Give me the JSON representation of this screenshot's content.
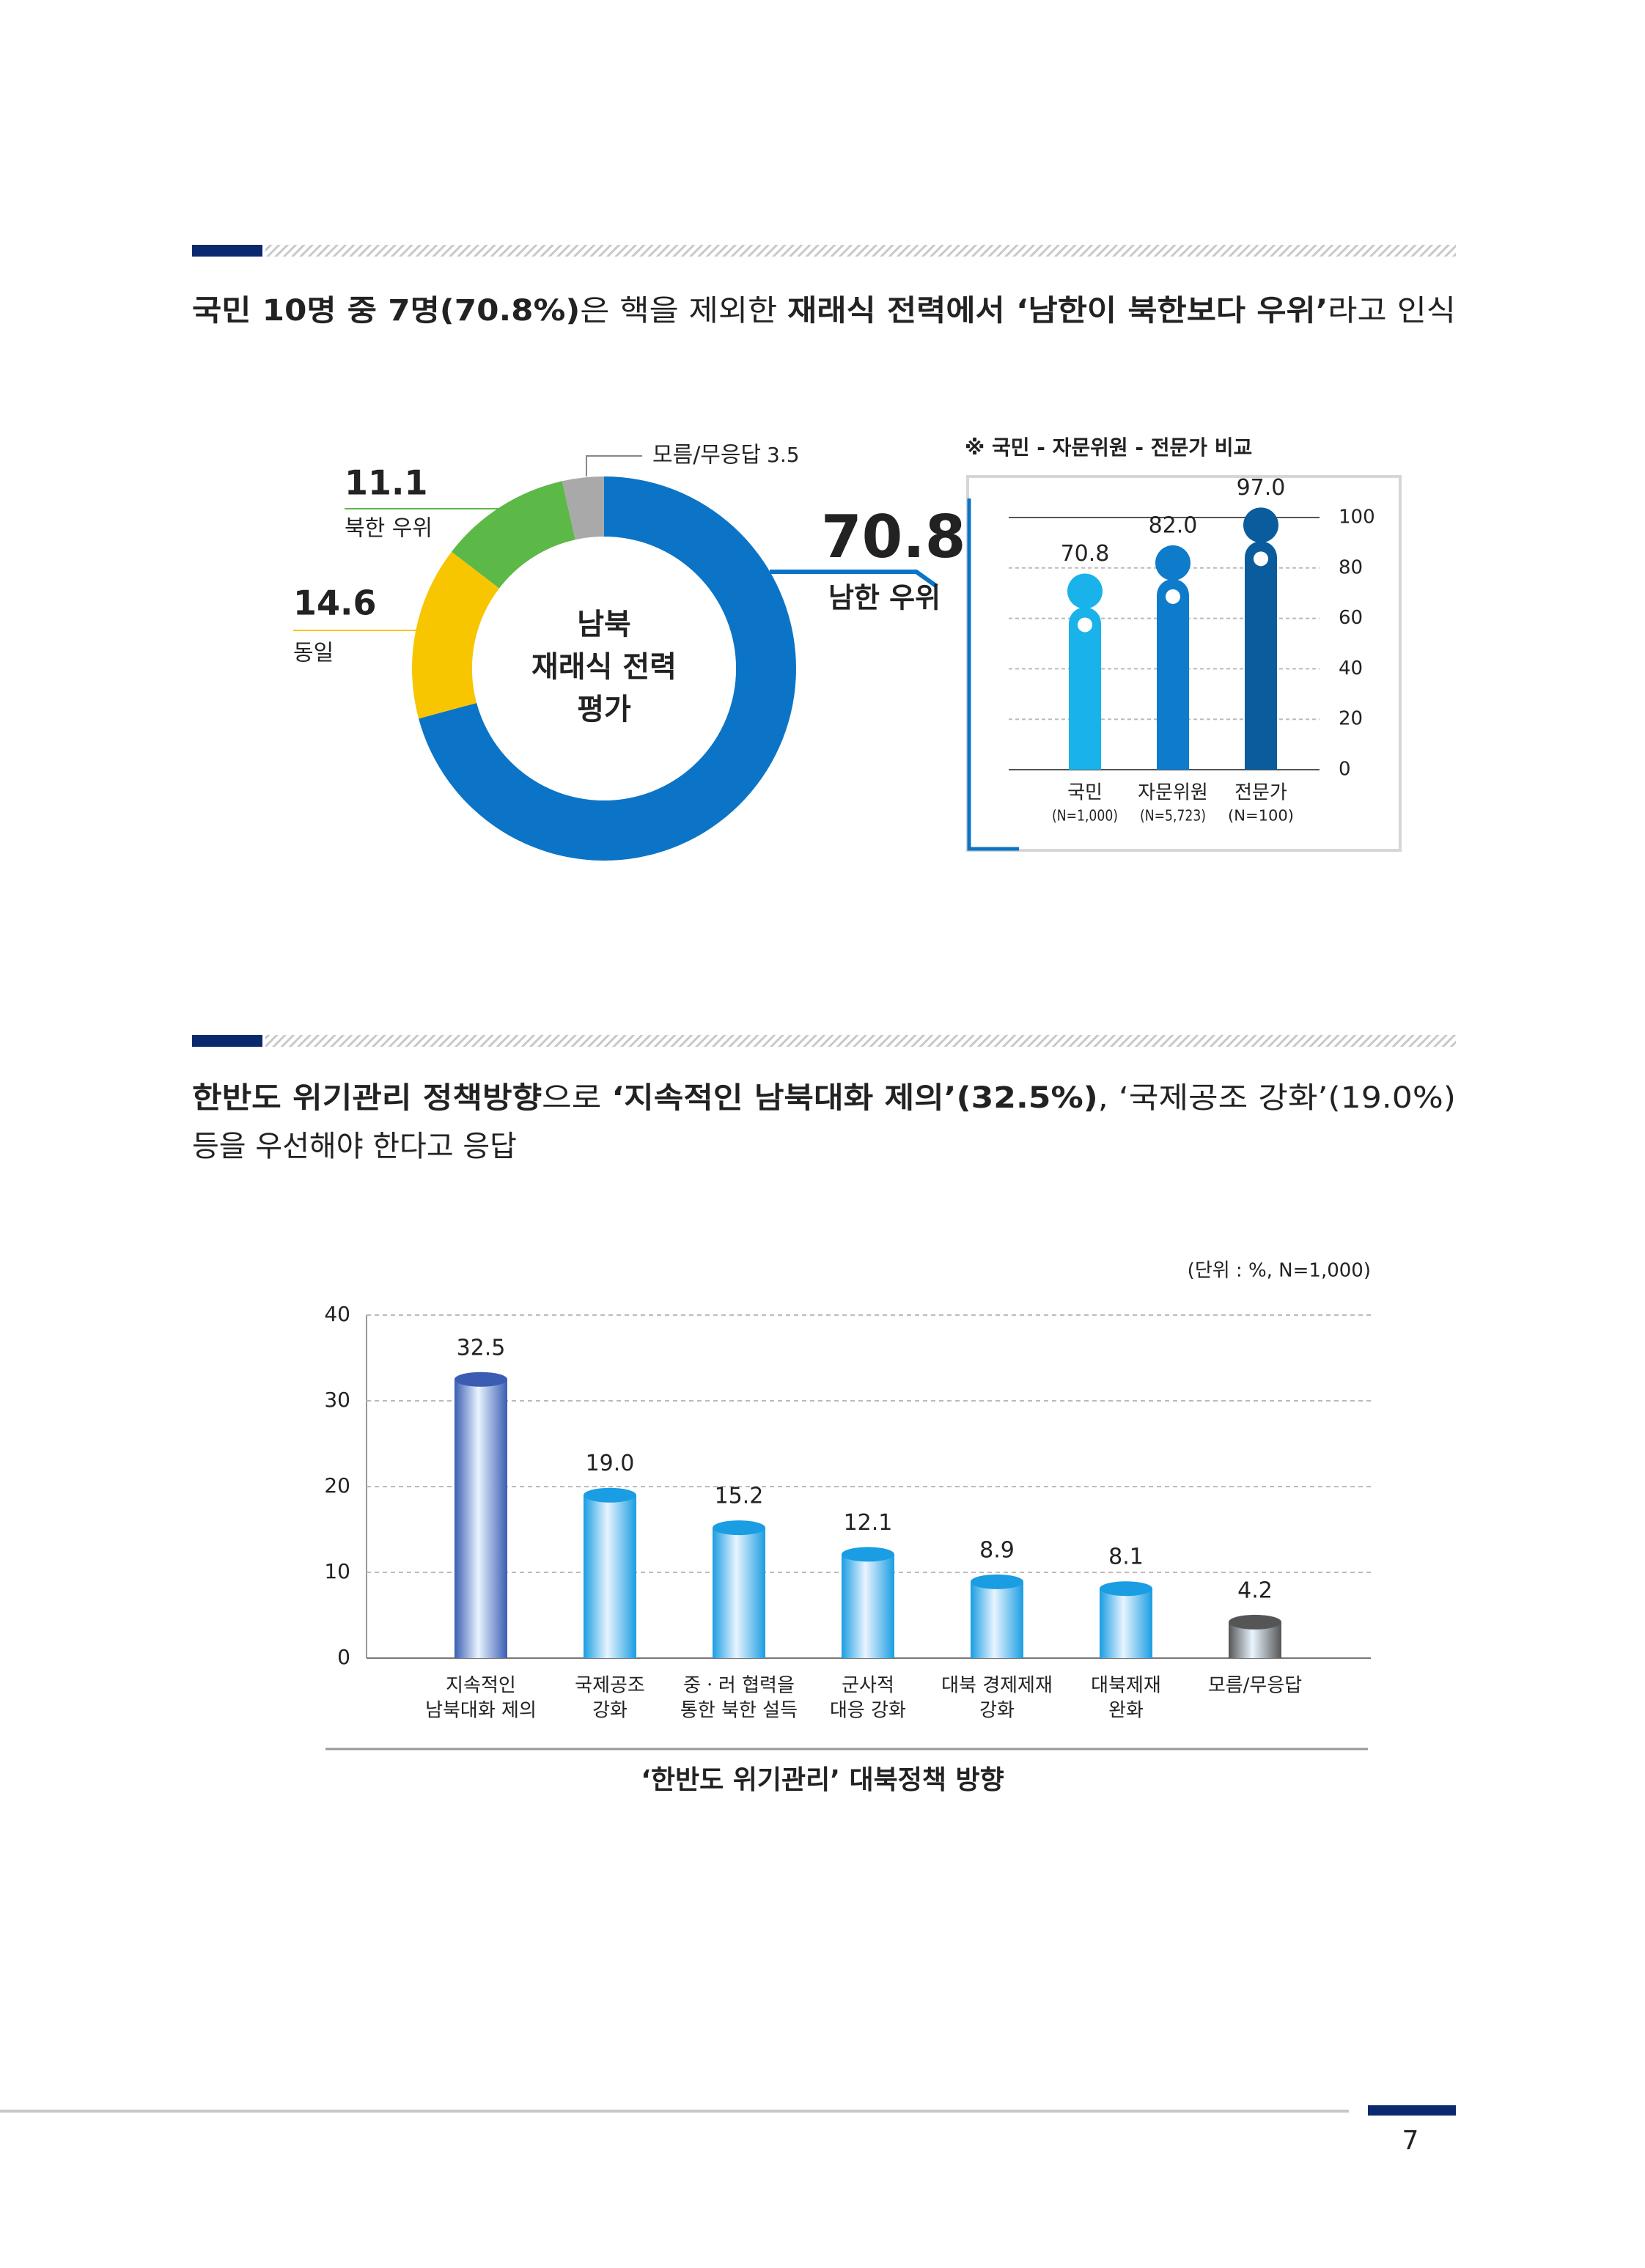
{
  "sections": [
    {
      "heading": [
        [
          {
            "text": "국민 10명 중 7명(70.8%)",
            "bold": true
          },
          {
            "text": "은 핵을 제외한 ",
            "bold": false
          },
          {
            "text": "재래식 전력에서 ‘남한이 북한보다 우위’",
            "bold": true
          },
          {
            "text": "라고 인식",
            "bold": false
          }
        ]
      ]
    },
    {
      "heading": [
        [
          {
            "text": "한반도 위기관리 정책방향",
            "bold": true
          },
          {
            "text": "으로 ",
            "bold": false
          },
          {
            "text": "‘지속적인 남북대화 제의’(32.5%)",
            "bold": true
          },
          {
            "text": ", ‘국제공조 강화’(19.0%)",
            "bold": false
          }
        ],
        [
          {
            "text": "등을 우선해야 한다고 응답",
            "bold": false
          }
        ]
      ]
    }
  ],
  "chart_data": [
    {
      "type": "donut",
      "center_label": [
        "남북",
        "재래식 전력",
        "평가"
      ],
      "categories": [
        "남한 우위",
        "동일",
        "북한 우위",
        "모름/무응답"
      ],
      "values": [
        70.8,
        14.6,
        11.1,
        3.5
      ],
      "colors": [
        "#0b74c6",
        "#f7c600",
        "#5cb947",
        "#a9a9a9"
      ]
    },
    {
      "type": "lollipop",
      "title": "※ 국민 - 자문위원 - 전문가 비교",
      "categories": [
        "국민",
        "자문위원",
        "전문가"
      ],
      "sublabels": [
        "(N=1,000)",
        "(N=5,723)",
        "(N=100)"
      ],
      "values": [
        70.8,
        82.0,
        97.0
      ],
      "value_labels": [
        "70.8",
        "82.0",
        "97.0"
      ],
      "colors": [
        "#1ab2ea",
        "#0f7bcb",
        "#0b5c9c"
      ],
      "ylim": [
        0,
        100
      ],
      "yticks": [
        0,
        20,
        40,
        60,
        80,
        100
      ],
      "grid": true
    },
    {
      "type": "bar",
      "title": "‘한반도 위기관리’ 대북정책 방향",
      "note": "(단위 : %, N=1,000)",
      "categories": [
        [
          "지속적인",
          "남북대화 제의"
        ],
        [
          "국제공조",
          "강화"
        ],
        [
          "중ㆍ러 협력을",
          "통한 북한 설득"
        ],
        [
          "군사적",
          "대응 강화"
        ],
        [
          "대북 경제제재",
          "강화"
        ],
        [
          "대북제재",
          "완화"
        ],
        [
          "모름/무응답"
        ]
      ],
      "values": [
        32.5,
        19.0,
        15.2,
        12.1,
        8.9,
        8.1,
        4.2
      ],
      "value_labels": [
        "32.5",
        "19.0",
        "15.2",
        "12.1",
        "8.9",
        "8.1",
        "4.2"
      ],
      "colors": [
        "#3a5db3",
        "#1a9de2",
        "#1a9de2",
        "#1a9de2",
        "#1a9de2",
        "#1a9de2",
        "#555555"
      ],
      "ylim": [
        0,
        40
      ],
      "yticks": [
        0,
        10,
        20,
        30,
        40
      ],
      "grid": true
    }
  ],
  "page_number": "7"
}
